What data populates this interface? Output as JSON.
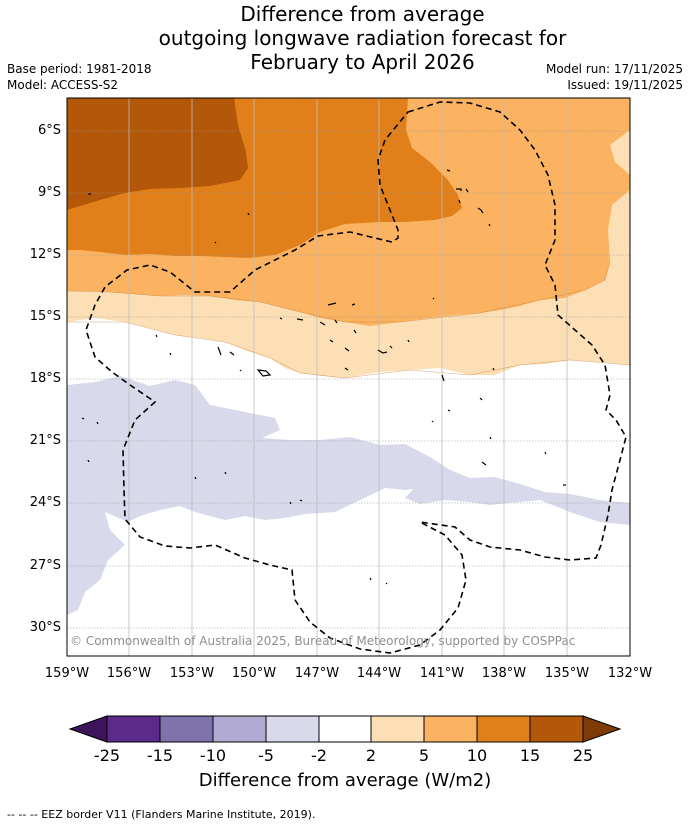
{
  "title": {
    "line1": "Difference from average",
    "line2": "outgoing longwave radiation forecast for",
    "line3": "February to April 2026"
  },
  "meta": {
    "base_period": "Base period: 1981-2018",
    "model": "Model: ACCESS-S2",
    "model_run": "Model run: 17/11/2025",
    "issued": "Issued: 19/11/2025"
  },
  "map": {
    "lat_labels": [
      "6°S",
      "9°S",
      "12°S",
      "15°S",
      "18°S",
      "21°S",
      "24°S",
      "27°S",
      "30°S"
    ],
    "lon_labels": [
      "159°W",
      "156°W",
      "153°W",
      "150°W",
      "147°W",
      "144°W",
      "141°W",
      "138°W",
      "135°W",
      "132°W"
    ],
    "copyright": "© Commonwealth of Australia 2025, Bureau of Meteorology, supported by COSPPac"
  },
  "colorbar": {
    "labels": [
      "-25",
      "-15",
      "-10",
      "-5",
      "-2",
      "2",
      "5",
      "10",
      "15",
      "25"
    ],
    "colors": [
      "#3d1459",
      "#5c2a8a",
      "#8073ad",
      "#b1abd3",
      "#d8d9ea",
      "#ffffff",
      "#fddfb5",
      "#fbb361",
      "#e1801a",
      "#b35708",
      "#7e3b08"
    ],
    "title": "Difference from average (W/m2)"
  },
  "footer": "-- -- -- EEZ border V11 (Flanders Marine Institute, 2019)."
}
